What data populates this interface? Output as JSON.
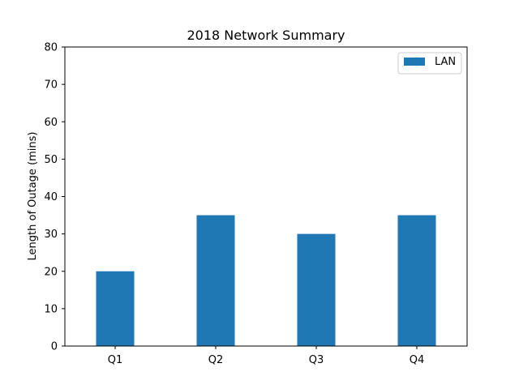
{
  "chart_data": {
    "type": "bar",
    "title": "2018 Network Summary",
    "xlabel": "",
    "ylabel": "Length of Outage (mins)",
    "categories": [
      "Q1",
      "Q2",
      "Q3",
      "Q4"
    ],
    "series": [
      {
        "name": "LAN",
        "values": [
          20,
          35,
          30,
          35
        ],
        "color": "#1f77b4"
      }
    ],
    "ylim": [
      0,
      80
    ],
    "yticks": [
      0,
      10,
      20,
      30,
      40,
      50,
      60,
      70,
      80
    ],
    "grid": false,
    "legend": "top-right"
  }
}
